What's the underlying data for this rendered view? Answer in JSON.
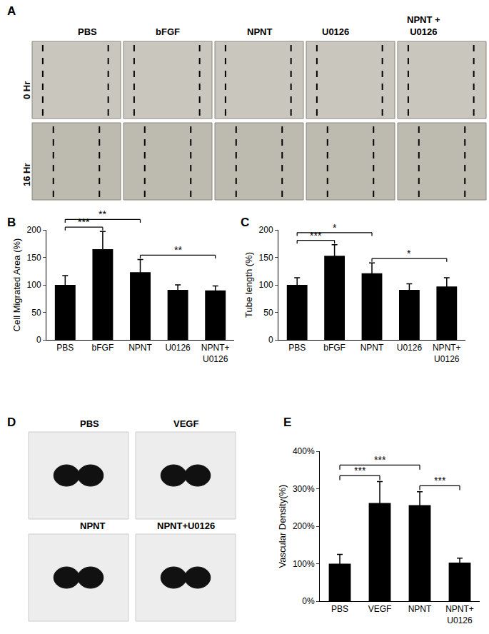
{
  "chart_data": [
    {
      "panel": "B",
      "type": "bar",
      "y_label": "Cell Migrated Area (%)",
      "categories": [
        "PBS",
        "bFGF",
        "NPNT",
        "U0126",
        "NPNT+ U0126"
      ],
      "values": [
        100,
        165,
        123,
        91,
        90
      ],
      "errors": [
        17,
        32,
        23,
        9,
        8
      ],
      "color": "#000000",
      "ylim": [
        0,
        200
      ],
      "yticks": [
        0,
        50,
        100,
        150,
        200
      ],
      "significance": [
        {
          "from": "PBS",
          "to": "bFGF",
          "label": "***"
        },
        {
          "from": "PBS",
          "to": "NPNT",
          "label": "**"
        },
        {
          "from": "NPNT",
          "to": "NPNT+ U0126",
          "label": "**"
        }
      ]
    },
    {
      "panel": "C",
      "type": "bar",
      "y_label": "Tube length (%)",
      "categories": [
        "PBS",
        "bFGF",
        "NPNT",
        "U0126",
        "NPNT+ U0126"
      ],
      "values": [
        100,
        153,
        121,
        91,
        97
      ],
      "errors": [
        13,
        20,
        19,
        11,
        16
      ],
      "color": "#000000",
      "ylim": [
        0,
        200
      ],
      "yticks": [
        0,
        50,
        100,
        150,
        200
      ],
      "significance": [
        {
          "from": "PBS",
          "to": "bFGF",
          "label": "***"
        },
        {
          "from": "PBS",
          "to": "NPNT",
          "label": "*"
        },
        {
          "from": "NPNT",
          "to": "NPNT+ U0126",
          "label": "*"
        }
      ]
    },
    {
      "panel": "E",
      "type": "bar",
      "y_label": "Vascular Density(%)",
      "categories": [
        "PBS",
        "VEGF",
        "NPNT",
        "NPNT+ U0126"
      ],
      "values": [
        100,
        262,
        256,
        103
      ],
      "errors": [
        25,
        57,
        36,
        12
      ],
      "color": "#000000",
      "ylim": [
        0,
        400
      ],
      "yticks": [
        {
          "value": 0,
          "label": "0%"
        },
        {
          "value": 100,
          "label": "100%"
        },
        {
          "value": 200,
          "label": "200%"
        },
        {
          "value": 300,
          "label": "300%"
        },
        {
          "value": 400,
          "label": "400%"
        }
      ],
      "significance": [
        {
          "from": "PBS",
          "to": "VEGF",
          "label": "***"
        },
        {
          "from": "PBS",
          "to": "NPNT",
          "label": "***"
        },
        {
          "from": "NPNT",
          "to": "NPNT+ U0126",
          "label": "***"
        }
      ]
    }
  ],
  "images": {
    "A": {
      "panel": "A",
      "columns": [
        "PBS",
        "bFGF",
        "NPNT",
        "U0126",
        "NPNT + U0126"
      ],
      "rows": [
        "0 Hr",
        "16 Hr"
      ]
    },
    "D": {
      "panel": "D",
      "labels": [
        "PBS",
        "VEGF",
        "NPNT",
        "NPNT+U0126"
      ]
    }
  }
}
